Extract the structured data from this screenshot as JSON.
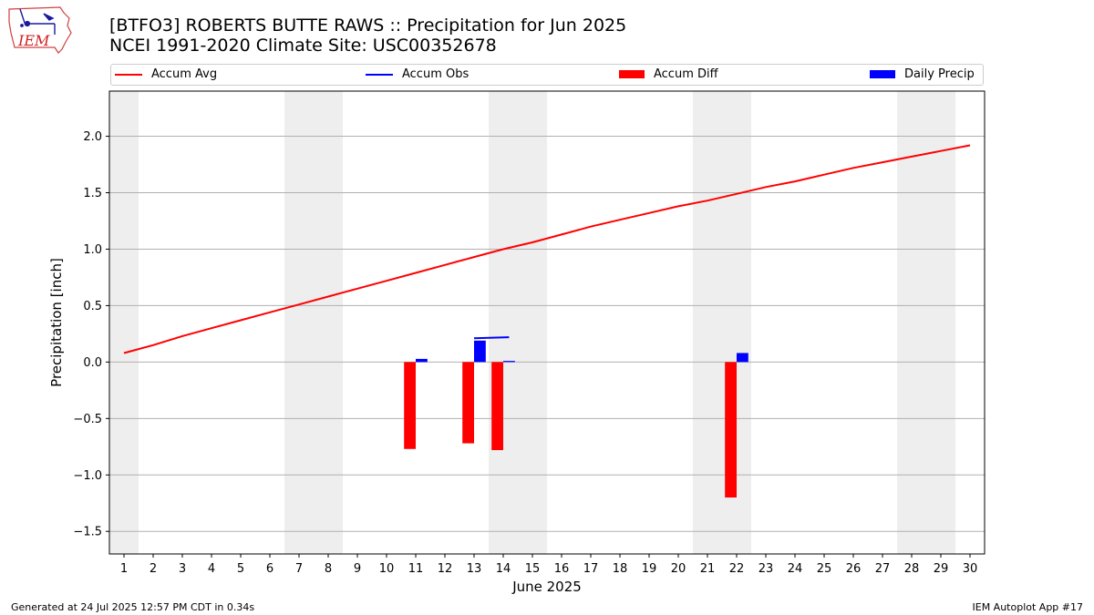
{
  "header": {
    "title_line1": "[BTFO3] ROBERTS BUTTE RAWS :: Precipitation for Jun 2025",
    "title_line2": "NCEI 1991-2020 Climate Site: USC00352678",
    "logo_text": "IEM"
  },
  "legend": {
    "items": [
      {
        "label": "Accum Avg",
        "color": "#ff0000",
        "kind": "line"
      },
      {
        "label": "Accum Obs",
        "color": "#0000ff",
        "kind": "line"
      },
      {
        "label": "Accum Diff",
        "color": "#ff0000",
        "kind": "bar"
      },
      {
        "label": "Daily Precip",
        "color": "#0000ff",
        "kind": "bar"
      }
    ]
  },
  "footer": {
    "left": "Generated at 24 Jul 2025 12:57 PM CDT in 0.34s",
    "right": "IEM Autoplot App #17"
  },
  "chart_data": {
    "type": "bar",
    "xlabel": "June 2025",
    "ylabel": "Precipitation [inch]",
    "xlim": [
      0.5,
      30.5
    ],
    "ylim": [
      -1.7,
      2.4
    ],
    "x_ticks": [
      1,
      2,
      3,
      4,
      5,
      6,
      7,
      8,
      9,
      10,
      11,
      12,
      13,
      14,
      15,
      16,
      17,
      18,
      19,
      20,
      21,
      22,
      23,
      24,
      25,
      26,
      27,
      28,
      29,
      30
    ],
    "y_ticks": [
      -1.5,
      -1.0,
      -0.5,
      0.0,
      0.5,
      1.0,
      1.5,
      2.0
    ],
    "y_tick_labels": [
      "−1.5",
      "−1.0",
      "−0.5",
      "0.0",
      "0.5",
      "1.0",
      "1.5",
      "2.0"
    ],
    "grid": "horizontal",
    "weekend_shading": [
      [
        0.5,
        1.5
      ],
      [
        6.5,
        8.5
      ],
      [
        13.5,
        15.5
      ],
      [
        20.5,
        22.5
      ],
      [
        27.5,
        29.5
      ]
    ],
    "series": [
      {
        "name": "Accum Avg",
        "kind": "line",
        "color": "#ff0000",
        "x": [
          1,
          2,
          3,
          4,
          5,
          6,
          7,
          8,
          9,
          10,
          11,
          12,
          13,
          14,
          15,
          16,
          17,
          18,
          19,
          20,
          21,
          22,
          23,
          24,
          25,
          26,
          27,
          28,
          29,
          30
        ],
        "values": [
          0.08,
          0.15,
          0.23,
          0.3,
          0.37,
          0.44,
          0.51,
          0.58,
          0.65,
          0.72,
          0.79,
          0.86,
          0.93,
          1.0,
          1.06,
          1.13,
          1.2,
          1.26,
          1.32,
          1.38,
          1.43,
          1.49,
          1.55,
          1.6,
          1.66,
          1.72,
          1.77,
          1.82,
          1.87,
          1.92
        ]
      },
      {
        "name": "Accum Obs",
        "kind": "line",
        "color": "#0000ff",
        "segments": [
          {
            "x": [
              11.0,
              11.4
            ],
            "values": [
              0.02,
              0.02
            ]
          },
          {
            "x": [
              13.0,
              14.2
            ],
            "values": [
              0.21,
              0.22
            ]
          }
        ]
      },
      {
        "name": "Accum Diff",
        "kind": "bar",
        "color": "#ff0000",
        "x": [
          10.8,
          12.8,
          13.8,
          21.8
        ],
        "values": [
          -0.77,
          -0.72,
          -0.78,
          -1.2
        ]
      },
      {
        "name": "Daily Precip",
        "kind": "bar",
        "color": "#0000ff",
        "x": [
          11.2,
          13.2,
          14.2,
          22.2
        ],
        "values": [
          0.02,
          0.19,
          0.01,
          0.08
        ]
      }
    ]
  }
}
